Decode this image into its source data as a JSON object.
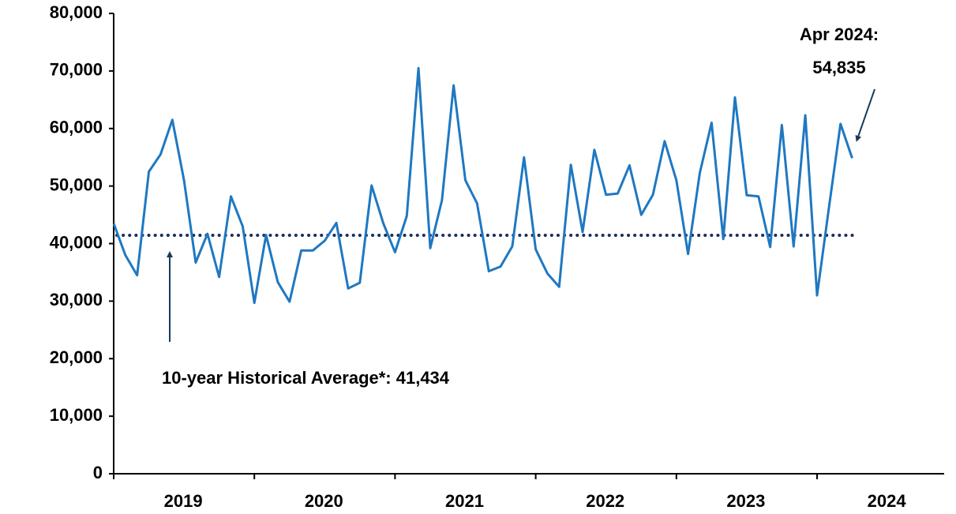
{
  "chart_data": {
    "type": "line",
    "x_labels": [
      "2019",
      "2020",
      "2021",
      "2022",
      "2023",
      "2024"
    ],
    "series": [
      {
        "color": "#1f78c1",
        "values": [
          43500,
          38000,
          34500,
          52500,
          55500,
          61500,
          51000,
          36700,
          41700,
          34200,
          48200,
          43000,
          29700,
          41500,
          33300,
          29900,
          38800,
          38800,
          40500,
          43600,
          32200,
          33200,
          50100,
          43500,
          38500,
          44800,
          70500,
          39200,
          47500,
          67500,
          51000,
          47000,
          35200,
          36000,
          39500,
          55000,
          39000,
          34800,
          32500,
          53700,
          42000,
          56300,
          48500,
          48700,
          53600,
          45000,
          48500,
          57800,
          51000,
          38200,
          52300,
          61000,
          40800,
          65400,
          48400,
          48200,
          39400,
          60600,
          39500,
          62300,
          31000,
          46000,
          60800,
          54835
        ]
      }
    ],
    "average": {
      "value": 41434,
      "label": "10-year Historical Average*: 41,434",
      "color": "#1a2f5a"
    },
    "annotation": [
      "Apr 2024:",
      "54,835"
    ],
    "ylim": [
      0,
      80000
    ],
    "yticks": [
      {
        "value": 0,
        "label": "0"
      },
      {
        "value": 10000,
        "label": "10,000"
      },
      {
        "value": 20000,
        "label": "20,000"
      },
      {
        "value": 30000,
        "label": "30,000"
      },
      {
        "value": 40000,
        "label": "40,000"
      },
      {
        "value": 50000,
        "label": "50,000"
      },
      {
        "value": 60000,
        "label": "60,000"
      },
      {
        "value": 70000,
        "label": "70,000"
      },
      {
        "value": 80000,
        "label": "80,000"
      }
    ]
  }
}
